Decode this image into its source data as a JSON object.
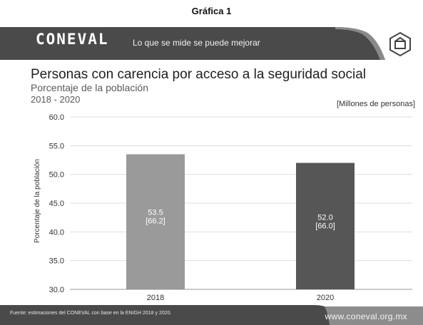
{
  "caption": "Gráfica 1",
  "brand": {
    "logo_text": "CONEVAL",
    "tagline": "Lo que se mide se puede mejorar",
    "emblem_icon": "coneval-emblem-icon"
  },
  "header": {
    "title": "Personas con carencia por acceso a la seguridad social",
    "subtitle": "Porcentaje de la población",
    "period": "2018 - 2020",
    "units": "[Millones de personas]"
  },
  "footer": {
    "source": "Fuente: estimaciones del CONEVAL con base en la ENIGH 2018 y 2020.",
    "url": "www.coneval.org.mx"
  },
  "colors": {
    "banner": "#4a4a4a",
    "bar_2018": "#9a9a9a",
    "bar_2020": "#565656",
    "grid": "#dedede"
  },
  "chart_data": {
    "type": "bar",
    "title": "Personas con carencia por acceso a la seguridad social",
    "subtitle": "Porcentaje de la población",
    "xlabel": "",
    "ylabel": "Porcentaje de la población",
    "ylim": [
      30.0,
      60.0
    ],
    "yticks": [
      "30.0",
      "35.0",
      "40.0",
      "45.0",
      "50.0",
      "55.0",
      "60.0"
    ],
    "grid": true,
    "categories": [
      "2018",
      "2020"
    ],
    "values": [
      53.5,
      52.0
    ],
    "labels": [
      [
        "53.5",
        "[66.2]"
      ],
      [
        "52.0",
        "[66.0]"
      ]
    ]
  }
}
